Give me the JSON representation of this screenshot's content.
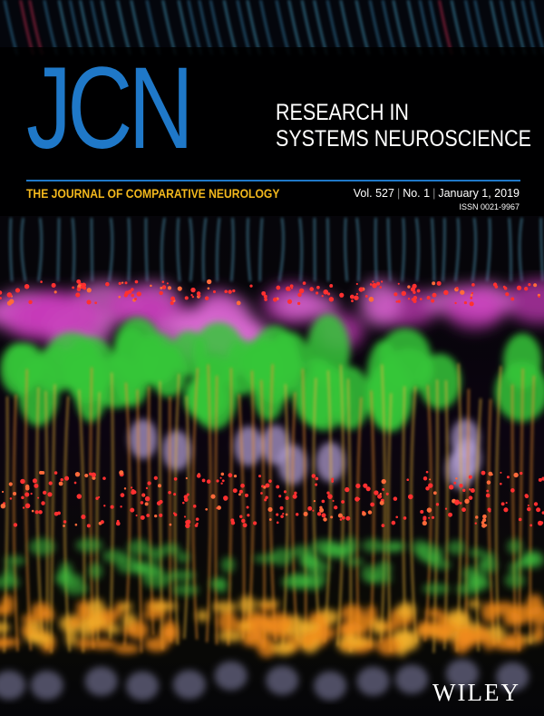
{
  "logo": "JCN",
  "tagline": [
    "RESEARCH IN",
    "SYSTEMS NEUROSCIENCE"
  ],
  "journal_name": "THE JOURNAL OF COMPARATIVE NEUROLOGY",
  "issue": {
    "volume": "Vol. 527",
    "number": "No. 1",
    "date": "January 1, 2019",
    "issn": "ISSN 0021-9967"
  },
  "publisher": "WILEY",
  "colors": {
    "accent_blue": "#1f78c8",
    "gold": "#f3b81d",
    "background": "#000000"
  }
}
